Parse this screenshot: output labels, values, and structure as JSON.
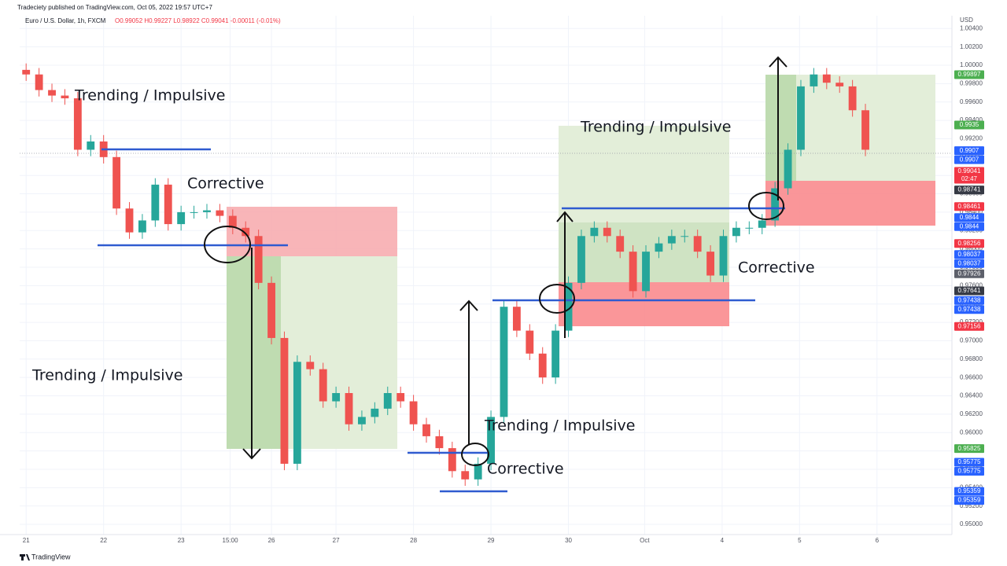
{
  "header": {
    "published": "Tradeciety published on TradingView.com, Oct 05, 2022 19:57 UTC+7",
    "ohlc": "O0.99052 H0.99227 L0.98922 C0.99041 -0.00011 (-0.01%)",
    "currency": "USD",
    "brand": "TradingView"
  },
  "chart_data": {
    "type": "candlestick",
    "title": "Euro / U.S. Dollar, 1h, FXCM",
    "up_color": "#26a69a",
    "down_color": "#ef5350",
    "grid": true,
    "xlim": [
      0,
      72.2
    ],
    "ylim": [
      0.94889,
      1.00454
    ],
    "xticks": [
      {
        "value": 0.5,
        "label": "21"
      },
      {
        "value": 6.5,
        "label": "22"
      },
      {
        "value": 12.5,
        "label": "23"
      },
      {
        "value": 16.3,
        "label": "15:00"
      },
      {
        "value": 19.5,
        "label": "26"
      },
      {
        "value": 24.5,
        "label": "27"
      },
      {
        "value": 30.5,
        "label": "28"
      },
      {
        "value": 36.5,
        "label": "29"
      },
      {
        "value": 42.5,
        "label": "30"
      },
      {
        "value": 48.4,
        "label": "Oct"
      },
      {
        "value": 54.4,
        "label": "4"
      },
      {
        "value": 60.4,
        "label": "5"
      },
      {
        "value": 66.4,
        "label": "6"
      }
    ],
    "yticks": [
      {
        "value": 0.95,
        "label": "0.95000"
      },
      {
        "value": 0.952,
        "label": "0.95200"
      },
      {
        "value": 0.954,
        "label": "0.95400"
      },
      {
        "value": 0.956,
        "label": "0.95600"
      },
      {
        "value": 0.958,
        "label": "0.95800"
      },
      {
        "value": 0.96,
        "label": "0.96000"
      },
      {
        "value": 0.962,
        "label": "0.96200"
      },
      {
        "value": 0.964,
        "label": "0.96400"
      },
      {
        "value": 0.966,
        "label": "0.96600"
      },
      {
        "value": 0.968,
        "label": "0.96800"
      },
      {
        "value": 0.97,
        "label": "0.97000"
      },
      {
        "value": 0.972,
        "label": "0.97200"
      },
      {
        "value": 0.974,
        "label": "0.97400"
      },
      {
        "value": 0.976,
        "label": "0.97600"
      },
      {
        "value": 0.978,
        "label": "0.97800"
      },
      {
        "value": 0.98,
        "label": "0.98000"
      },
      {
        "value": 0.982,
        "label": "0.98200"
      },
      {
        "value": 0.984,
        "label": "0.98400"
      },
      {
        "value": 0.986,
        "label": "0.98600"
      },
      {
        "value": 0.988,
        "label": "0.98800"
      },
      {
        "value": 0.99,
        "label": "0.99000"
      },
      {
        "value": 0.992,
        "label": "0.99200"
      },
      {
        "value": 0.994,
        "label": "0.99400"
      },
      {
        "value": 0.996,
        "label": "0.99600"
      },
      {
        "value": 0.998,
        "label": "0.99800"
      },
      {
        "value": 1.0,
        "label": "1.00000"
      },
      {
        "value": 1.002,
        "label": "1.00200"
      },
      {
        "value": 1.004,
        "label": "1.00400"
      }
    ],
    "x": [
      0.5,
      1.5,
      2.5,
      3.5,
      4.5,
      5.5,
      6.5,
      7.5,
      8.5,
      9.5,
      10.5,
      11.5,
      12.5,
      13.5,
      14.5,
      15.5,
      16.5,
      17.5,
      18.5,
      19.5,
      20.5,
      21.5,
      22.5,
      23.5,
      24.5,
      25.5,
      26.5,
      27.5,
      28.5,
      29.5,
      30.5,
      31.5,
      32.5,
      33.5,
      34.5,
      35.5,
      36.5,
      37.5,
      38.5,
      39.5,
      40.5,
      41.5,
      42.5,
      43.5,
      44.5,
      45.5,
      46.5,
      47.5,
      48.5,
      49.5,
      50.5,
      51.5,
      52.5,
      53.5,
      54.5,
      55.5,
      56.5,
      57.5,
      58.5,
      59.5,
      60.5,
      61.5,
      62.5,
      63.5,
      64.5,
      65.5
    ],
    "open": [
      0.9995,
      0.999,
      0.9973,
      0.9967,
      0.9964,
      0.9908,
      0.9917,
      0.99,
      0.9844,
      0.9818,
      0.9831,
      0.987,
      0.9827,
      0.984,
      0.984,
      0.9842,
      0.9836,
      0.9823,
      0.9814,
      0.9763,
      0.9703,
      0.9566,
      0.9677,
      0.9669,
      0.9634,
      0.9643,
      0.9609,
      0.9617,
      0.9626,
      0.9643,
      0.9634,
      0.9609,
      0.9596,
      0.9583,
      0.9558,
      0.9549,
      0.9566,
      0.9617,
      0.9737,
      0.9711,
      0.9686,
      0.966,
      0.9711,
      0.9763,
      0.9814,
      0.9823,
      0.9814,
      0.9797,
      0.9754,
      0.9797,
      0.9806,
      0.9814,
      0.9814,
      0.9797,
      0.9771,
      0.9814,
      0.9823,
      0.9823,
      0.9831,
      0.9866,
      0.9908,
      0.9977,
      0.999,
      0.9981,
      0.9977,
      0.9951
    ],
    "high": [
      1.0002,
      0.9997,
      0.998,
      0.9974,
      0.9971,
      0.9924,
      0.9924,
      0.9907,
      0.9851,
      0.9838,
      0.9877,
      0.9877,
      0.9847,
      0.9847,
      0.9849,
      0.9849,
      0.9843,
      0.983,
      0.9821,
      0.977,
      0.971,
      0.9684,
      0.9684,
      0.9676,
      0.965,
      0.965,
      0.9624,
      0.9633,
      0.965,
      0.965,
      0.9641,
      0.9616,
      0.9603,
      0.959,
      0.9565,
      0.9573,
      0.9624,
      0.9744,
      0.9744,
      0.9718,
      0.9693,
      0.9718,
      0.977,
      0.9821,
      0.983,
      0.983,
      0.9821,
      0.9804,
      0.9804,
      0.9813,
      0.9821,
      0.9821,
      0.9821,
      0.9804,
      0.9821,
      0.983,
      0.983,
      0.9838,
      0.9873,
      0.9915,
      0.9984,
      0.9997,
      0.9997,
      0.9988,
      0.9984,
      0.9958
    ],
    "low": [
      0.9983,
      0.9966,
      0.996,
      0.9957,
      0.9901,
      0.9901,
      0.9893,
      0.9837,
      0.9811,
      0.9811,
      0.9824,
      0.982,
      0.982,
      0.9833,
      0.9833,
      0.9829,
      0.9816,
      0.9807,
      0.9756,
      0.9696,
      0.9559,
      0.9559,
      0.9662,
      0.9627,
      0.9627,
      0.9602,
      0.9602,
      0.961,
      0.9619,
      0.9627,
      0.9602,
      0.9589,
      0.9576,
      0.9551,
      0.9542,
      0.9542,
      0.9559,
      0.961,
      0.9704,
      0.9679,
      0.9653,
      0.9653,
      0.9704,
      0.9756,
      0.9807,
      0.9807,
      0.979,
      0.9747,
      0.9747,
      0.979,
      0.9799,
      0.9807,
      0.979,
      0.9764,
      0.9764,
      0.9807,
      0.9816,
      0.9816,
      0.9824,
      0.9859,
      0.9901,
      0.997,
      0.9974,
      0.997,
      0.9944,
      0.9901
    ],
    "close": [
      0.999,
      0.9973,
      0.9967,
      0.9964,
      0.9908,
      0.9917,
      0.99,
      0.9844,
      0.9818,
      0.9831,
      0.987,
      0.9827,
      0.984,
      0.984,
      0.9842,
      0.9836,
      0.9823,
      0.9814,
      0.9763,
      0.9703,
      0.9566,
      0.9677,
      0.9669,
      0.9634,
      0.9643,
      0.9609,
      0.9617,
      0.9626,
      0.9643,
      0.9634,
      0.9609,
      0.9596,
      0.9583,
      0.9558,
      0.9549,
      0.9566,
      0.9617,
      0.9737,
      0.9711,
      0.9686,
      0.966,
      0.9711,
      0.9763,
      0.9814,
      0.9823,
      0.9814,
      0.9797,
      0.9754,
      0.9797,
      0.9806,
      0.9814,
      0.9814,
      0.9797,
      0.9771,
      0.9814,
      0.9823,
      0.9823,
      0.9831,
      0.9866,
      0.9908,
      0.9977,
      0.999,
      0.9981,
      0.9977,
      0.9951,
      0.9908
    ],
    "annotations": [
      "Trending / Impulsive",
      "Corrective",
      "Trending / Impulsive",
      "Trending / Impulsive",
      "Corrective",
      "Trending / Impulsive",
      "Corrective"
    ],
    "price_tags": [
      {
        "value": 0.99897,
        "color": "#4caf50"
      },
      {
        "value": 0.9935,
        "color": "#4caf50"
      },
      {
        "value": 0.9907,
        "color": "#2962ff"
      },
      {
        "value": 0.9907,
        "color": "#2962ff"
      },
      {
        "value": 0.99041,
        "color": "#f23645",
        "sublabel": "02:47"
      },
      {
        "value": 0.98741,
        "color": "#363a45"
      },
      {
        "value": 0.98461,
        "color": "#f23645"
      },
      {
        "value": 0.9844,
        "color": "#2962ff"
      },
      {
        "value": 0.9844,
        "color": "#2962ff"
      },
      {
        "value": 0.98256,
        "color": "#f23645"
      },
      {
        "value": 0.98037,
        "color": "#2962ff"
      },
      {
        "value": 0.98037,
        "color": "#2962ff"
      },
      {
        "value": 0.97926,
        "color": "#5d606b"
      },
      {
        "value": 0.97641,
        "color": "#363a45"
      },
      {
        "value": 0.97438,
        "color": "#2962ff"
      },
      {
        "value": 0.97438,
        "color": "#2962ff"
      },
      {
        "value": 0.97156,
        "color": "#f23645"
      },
      {
        "value": 0.95825,
        "color": "#4caf50"
      },
      {
        "value": 0.95775,
        "color": "#2962ff"
      },
      {
        "value": 0.95775,
        "color": "#2962ff"
      },
      {
        "value": 0.95359,
        "color": "#2962ff"
      },
      {
        "value": 0.95359,
        "color": "#2962ff"
      }
    ]
  }
}
